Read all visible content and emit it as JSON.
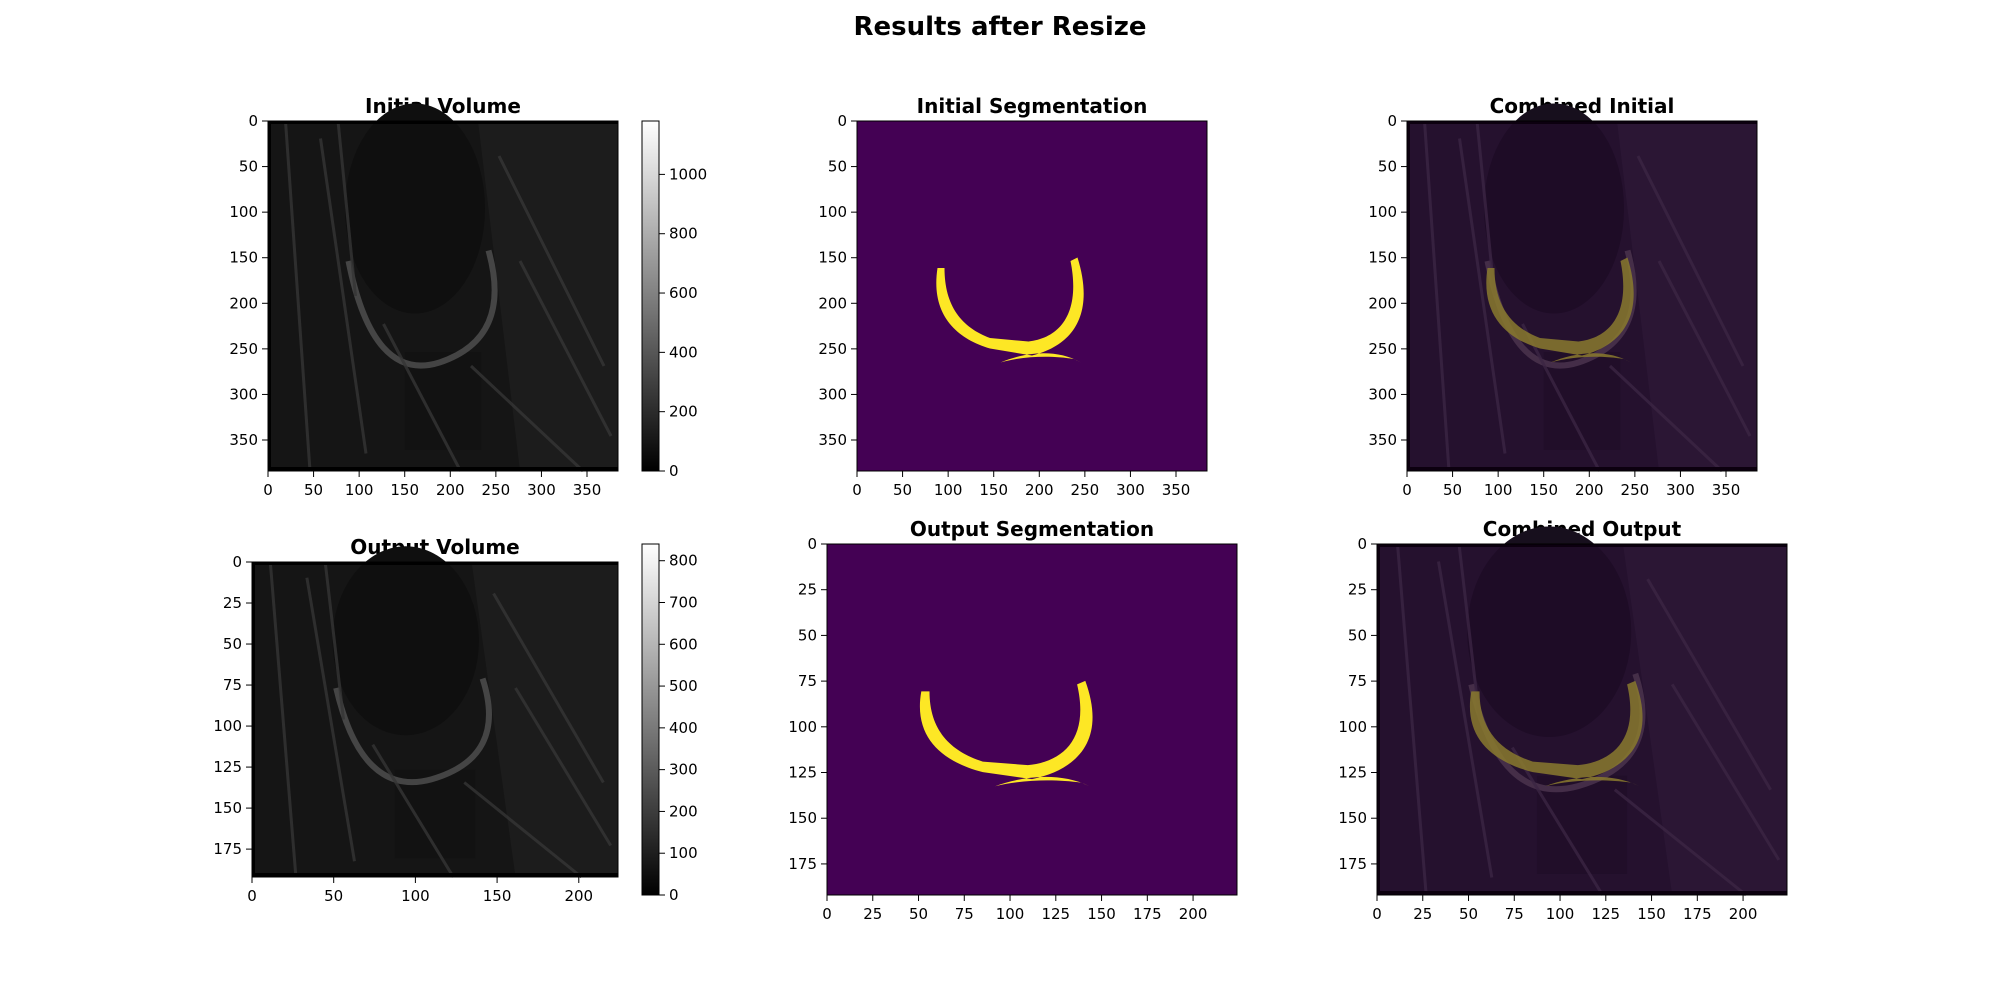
{
  "figure": {
    "title": "Results after Resize"
  },
  "panels": [
    {
      "id": "initial-volume",
      "title": "Initial Volume",
      "kind": "mri-grayscale",
      "x_ticks": [
        "0",
        "50",
        "100",
        "150",
        "200",
        "250",
        "300",
        "350"
      ],
      "y_ticks": [
        "0",
        "50",
        "100",
        "150",
        "200",
        "250",
        "300",
        "350"
      ],
      "colorbar": {
        "ticks": [
          "0",
          "200",
          "400",
          "600",
          "800",
          "1000"
        ],
        "colormap": "gray",
        "max": 1180
      }
    },
    {
      "id": "initial-segmentation",
      "title": "Initial Segmentation",
      "kind": "segmentation-mask",
      "x_ticks": [
        "0",
        "50",
        "100",
        "150",
        "200",
        "250",
        "300",
        "350"
      ],
      "y_ticks": [
        "0",
        "50",
        "100",
        "150",
        "200",
        "250",
        "300",
        "350"
      ],
      "colors": {
        "background": "#440154",
        "mask": "#fde725"
      }
    },
    {
      "id": "combined-initial",
      "title": "Combined Initial",
      "kind": "overlay",
      "x_ticks": [
        "0",
        "50",
        "100",
        "150",
        "200",
        "250",
        "300",
        "350"
      ],
      "y_ticks": [
        "0",
        "50",
        "100",
        "150",
        "200",
        "250",
        "300",
        "350"
      ]
    },
    {
      "id": "output-volume",
      "title": "Output Volume",
      "kind": "mri-grayscale",
      "x_ticks": [
        "0",
        "50",
        "100",
        "150",
        "200"
      ],
      "y_ticks": [
        "0",
        "25",
        "50",
        "75",
        "100",
        "125",
        "150",
        "175"
      ],
      "colorbar": {
        "ticks": [
          "0",
          "100",
          "200",
          "300",
          "400",
          "500",
          "600",
          "700",
          "800"
        ],
        "colormap": "gray",
        "max": 840
      }
    },
    {
      "id": "output-segmentation",
      "title": "Output Segmentation",
      "kind": "segmentation-mask",
      "x_ticks": [
        "0",
        "25",
        "50",
        "75",
        "100",
        "125",
        "150",
        "175",
        "200"
      ],
      "y_ticks": [
        "0",
        "25",
        "50",
        "75",
        "100",
        "125",
        "150",
        "175"
      ],
      "colors": {
        "background": "#440154",
        "mask": "#fde725"
      }
    },
    {
      "id": "combined-output",
      "title": "Combined Output",
      "kind": "overlay",
      "x_ticks": [
        "0",
        "25",
        "50",
        "75",
        "100",
        "125",
        "150",
        "175",
        "200"
      ],
      "y_ticks": [
        "0",
        "25",
        "50",
        "75",
        "100",
        "125",
        "150",
        "175"
      ]
    }
  ]
}
